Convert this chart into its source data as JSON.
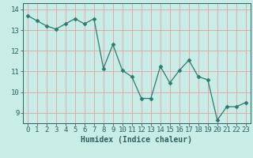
{
  "x": [
    0,
    1,
    2,
    3,
    4,
    5,
    6,
    7,
    8,
    9,
    10,
    11,
    12,
    13,
    14,
    15,
    16,
    17,
    18,
    19,
    20,
    21,
    22,
    23
  ],
  "y": [
    13.7,
    13.45,
    13.2,
    13.05,
    13.3,
    13.55,
    13.3,
    13.55,
    11.15,
    12.3,
    11.05,
    10.75,
    9.7,
    9.7,
    11.25,
    10.45,
    11.05,
    11.55,
    10.75,
    10.6,
    8.65,
    9.3,
    9.3,
    9.5
  ],
  "line_color": "#2d7b6e",
  "marker": "D",
  "marker_size": 2.5,
  "bg_color": "#c8ece6",
  "grid_color": "#e8a0a0",
  "xlabel": "Humidex (Indice chaleur)",
  "xlim": [
    -0.5,
    23.5
  ],
  "ylim": [
    8.5,
    14.3
  ],
  "yticks": [
    9,
    10,
    11,
    12,
    13,
    14
  ],
  "xticks": [
    0,
    1,
    2,
    3,
    4,
    5,
    6,
    7,
    8,
    9,
    10,
    11,
    12,
    13,
    14,
    15,
    16,
    17,
    18,
    19,
    20,
    21,
    22,
    23
  ],
  "font_color": "#2e6060",
  "tick_fontsize": 6.5,
  "xlabel_fontsize": 7.0
}
